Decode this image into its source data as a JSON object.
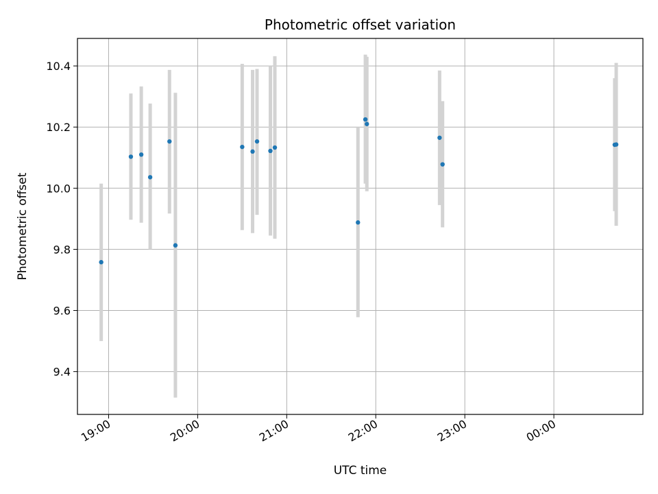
{
  "chart_data": {
    "type": "scatter",
    "title": "Photometric offset variation",
    "xlabel": "UTC time",
    "ylabel": "Photometric offset",
    "x_axis": {
      "kind": "time",
      "range": [
        "18:39",
        "01:00"
      ],
      "ticks": [
        "19:00",
        "20:00",
        "21:00",
        "22:00",
        "23:00",
        "00:00"
      ]
    },
    "y_axis": {
      "range": [
        9.26,
        10.49
      ],
      "ticks": [
        "9.4",
        "9.6",
        "9.8",
        "10.0",
        "10.2",
        "10.4"
      ]
    },
    "grid": true,
    "legend": "none",
    "colors": {
      "point": "#1f77b4",
      "errorbar": "#d3d3d3",
      "grid": "#b0b0b0"
    },
    "points": [
      {
        "x": "18:55",
        "y": 9.758,
        "low": 9.5,
        "high": 10.015
      },
      {
        "x": "19:15",
        "y": 10.103,
        "low": 9.897,
        "high": 10.31
      },
      {
        "x": "19:22",
        "y": 10.11,
        "low": 9.887,
        "high": 10.333
      },
      {
        "x": "19:28",
        "y": 10.036,
        "low": 9.8,
        "high": 10.277
      },
      {
        "x": "19:41",
        "y": 10.153,
        "low": 9.917,
        "high": 10.387
      },
      {
        "x": "19:45",
        "y": 9.813,
        "low": 9.315,
        "high": 10.312
      },
      {
        "x": "20:30",
        "y": 10.135,
        "low": 9.863,
        "high": 10.407
      },
      {
        "x": "20:37",
        "y": 10.12,
        "low": 9.853,
        "high": 10.387
      },
      {
        "x": "20:40",
        "y": 10.153,
        "low": 9.913,
        "high": 10.39
      },
      {
        "x": "20:49",
        "y": 10.122,
        "low": 9.845,
        "high": 10.398
      },
      {
        "x": "20:52",
        "y": 10.133,
        "low": 9.835,
        "high": 10.432
      },
      {
        "x": "21:48",
        "y": 9.888,
        "low": 9.578,
        "high": 10.2
      },
      {
        "x": "21:53",
        "y": 10.225,
        "low": 10.015,
        "high": 10.437
      },
      {
        "x": "21:54",
        "y": 10.21,
        "low": 9.99,
        "high": 10.43
      },
      {
        "x": "22:43",
        "y": 10.165,
        "low": 9.945,
        "high": 10.385
      },
      {
        "x": "22:45",
        "y": 10.078,
        "low": 9.872,
        "high": 10.285
      },
      {
        "x": "00:41",
        "y": 10.142,
        "low": 9.925,
        "high": 10.36
      },
      {
        "x": "00:42",
        "y": 10.143,
        "low": 9.877,
        "high": 10.41
      }
    ]
  }
}
